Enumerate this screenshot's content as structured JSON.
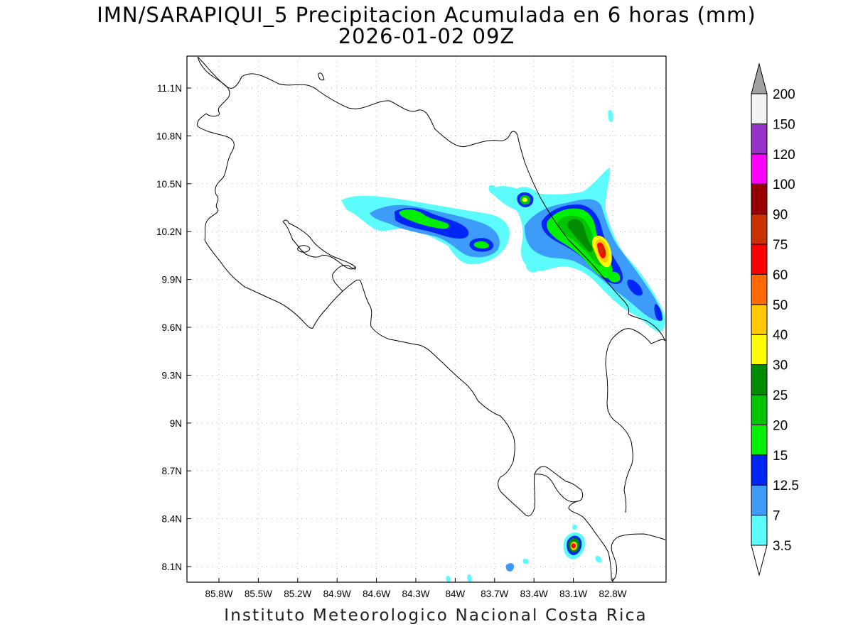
{
  "title": {
    "line1": "IMN/SARAPIQUI_5 Precipitacion Acumulada en 6 horas (mm)",
    "line2": "2026-01-02 09Z"
  },
  "footer": "Instituto Meteorologico Nacional Costa Rica",
  "map": {
    "lon_ticks": [
      "85.8W",
      "85.5W",
      "85.2W",
      "84.9W",
      "84.6W",
      "84.3W",
      "84W",
      "83.7W",
      "83.4W",
      "83.1W",
      "82.8W"
    ],
    "lat_ticks": [
      "11.1N",
      "10.8N",
      "10.5N",
      "10.2N",
      "9.9N",
      "9.6N",
      "9.3N",
      "9N",
      "8.7N",
      "8.4N",
      "8.1N"
    ],
    "lon_values": [
      -85.8,
      -85.5,
      -85.2,
      -84.9,
      -84.6,
      -84.3,
      -84.0,
      -83.7,
      -83.4,
      -83.1,
      -82.8
    ],
    "lat_values": [
      11.1,
      10.8,
      10.5,
      10.2,
      9.9,
      9.6,
      9.3,
      9.0,
      8.7,
      8.4,
      8.1
    ],
    "grid": true
  },
  "colorbar": {
    "labels": [
      "3.5",
      "7",
      "12.5",
      "15",
      "20",
      "25",
      "30",
      "40",
      "50",
      "60",
      "75",
      "90",
      "100",
      "120",
      "150",
      "200"
    ],
    "colors": [
      "#ffffff",
      "#5dfcfc",
      "#3d9cf9",
      "#0026f5",
      "#00f000",
      "#00c400",
      "#008c00",
      "#ffff00",
      "#ffc800",
      "#ff6a00",
      "#ff0000",
      "#c83200",
      "#960000",
      "#ff00ff",
      "#9632c8",
      "#f2f2f2",
      "#a0a0a0"
    ]
  },
  "palette": {
    "c3_5": "#5dfcfc",
    "c7": "#3d9cf9",
    "c12_5": "#0026f5",
    "c15": "#00f000",
    "c20": "#00c400",
    "c25": "#008c00",
    "c30": "#ffff00",
    "c40": "#ffc800",
    "c60": "#ff0000",
    "c75": "#c83200"
  }
}
